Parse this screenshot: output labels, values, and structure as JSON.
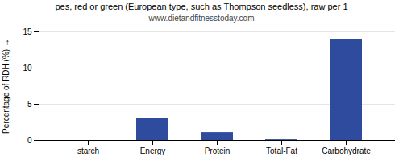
{
  "chart_data": {
    "type": "bar",
    "title": "pes, red or green (European type, such as Thompson seedless), raw per 1",
    "subtitle": "www.dietandfitnesstoday.com",
    "ylabel": "Percentage of RDH (%)",
    "categories": [
      "starch",
      "Energy",
      "Protein",
      "Total-Fat",
      "Carbohydrate"
    ],
    "values": [
      0,
      3.0,
      1.1,
      0.1,
      14.0
    ],
    "color": "#2e4b9e",
    "ylim": [
      0,
      15
    ],
    "yticks": [
      0,
      5,
      10,
      15
    ],
    "grid": true
  }
}
